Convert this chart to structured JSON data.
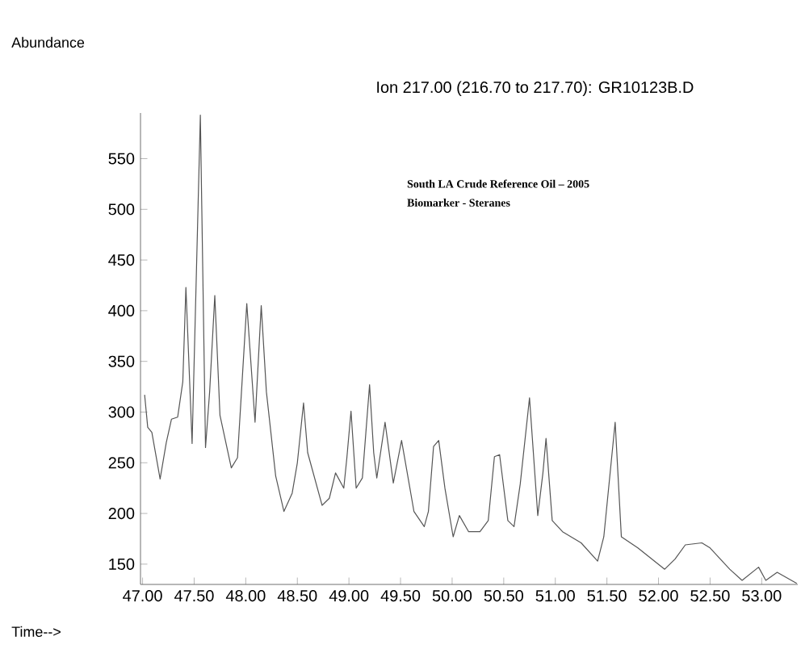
{
  "chart_data": {
    "type": "line",
    "title": "Ion 217.00 (216.70 to 217.70): GR10123B.D",
    "xlabel": "Time-->",
    "ylabel": "Abundance",
    "annotations": [
      "South LA Crude Reference Oil – 2005",
      "Biomarker - Steranes"
    ],
    "xlim": [
      46.98,
      53.35
    ],
    "ylim": [
      130,
      595
    ],
    "xticks": [
      {
        "value": 47,
        "label": "47.00"
      },
      {
        "value": 47.5,
        "label": "47.50"
      },
      {
        "value": 48,
        "label": "48.00"
      },
      {
        "value": 48.5,
        "label": "48.50"
      },
      {
        "value": 49,
        "label": "49.00"
      },
      {
        "value": 49.5,
        "label": "49.50"
      },
      {
        "value": 50,
        "label": "50.00"
      },
      {
        "value": 50.5,
        "label": "50.50"
      },
      {
        "value": 51,
        "label": "51.00"
      },
      {
        "value": 51.5,
        "label": "51.50"
      },
      {
        "value": 52,
        "label": "52.00"
      },
      {
        "value": 52.5,
        "label": "52.50"
      },
      {
        "value": 53,
        "label": "53.00"
      }
    ],
    "yticks": [
      150,
      200,
      250,
      300,
      350,
      400,
      450,
      500,
      550
    ],
    "series": [
      {
        "color": "#555555",
        "x": [
          47.02,
          47.05,
          47.09,
          47.17,
          47.23,
          47.28,
          47.34,
          47.39,
          47.42,
          47.48,
          47.56,
          47.61,
          47.65,
          47.7,
          47.75,
          47.86,
          47.92,
          48.01,
          48.09,
          48.15,
          48.2,
          48.29,
          48.37,
          48.45,
          48.5,
          48.56,
          48.6,
          48.74,
          48.81,
          48.87,
          48.95,
          48.98,
          49.02,
          49.07,
          49.13,
          49.2,
          49.24,
          49.27,
          49.35,
          49.43,
          49.51,
          49.63,
          49.73,
          49.77,
          49.82,
          49.87,
          49.93,
          50.01,
          50.07,
          50.16,
          50.27,
          50.35,
          50.41,
          50.46,
          50.54,
          50.6,
          50.66,
          50.75,
          50.83,
          50.88,
          50.91,
          50.97,
          51.07,
          51.25,
          51.41,
          51.47,
          51.58,
          51.64,
          51.8,
          52.06,
          52.16,
          52.26,
          52.42,
          52.5,
          52.69,
          52.81,
          52.97,
          53.04,
          53.15,
          53.34
        ],
        "values": [
          317,
          285,
          280,
          234,
          270,
          293,
          295,
          330,
          423,
          269,
          593,
          265,
          320,
          415,
          297,
          245,
          255,
          407,
          290,
          405,
          320,
          237,
          202,
          220,
          250,
          309,
          260,
          208,
          215,
          240,
          225,
          255,
          301,
          225,
          235,
          327,
          260,
          235,
          290,
          230,
          272,
          202,
          187,
          202,
          266,
          272,
          225,
          177,
          198,
          182,
          182,
          193,
          256,
          258,
          193,
          187,
          229,
          314,
          198,
          240,
          274,
          193,
          182,
          171,
          153,
          177,
          290,
          177,
          166,
          145,
          155,
          169,
          171,
          166,
          145,
          134,
          147,
          134,
          142,
          131
        ]
      }
    ]
  }
}
